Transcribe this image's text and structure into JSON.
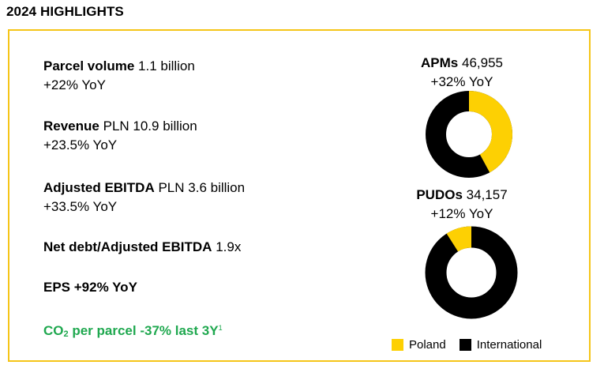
{
  "title": "2024 HIGHLIGHTS",
  "metrics": {
    "parcel": {
      "label": "Parcel volume",
      "value": "1.1 billion",
      "change": "+22% YoY"
    },
    "revenue": {
      "label": "Revenue",
      "value": "PLN 10.9 billion",
      "change": "+23.5% YoY"
    },
    "ebitda": {
      "label": "Adjusted EBITDA",
      "value": "PLN 3.6 billion",
      "change": "+33.5% YoY"
    },
    "netdebt": {
      "label": "Net debt/Adjusted EBITDA",
      "value": "1.9x"
    },
    "eps": {
      "label": "EPS +92% YoY"
    },
    "co2": {
      "pre": "CO",
      "subscript": "2",
      "post": " per parcel -37% last 3Y",
      "footnote": "1"
    }
  },
  "apms": {
    "label": "APMs",
    "value": "46,955",
    "change": "+32% YoY",
    "poland_share": 0.42,
    "international_share": 0.58
  },
  "pudos": {
    "label": "PUDOs",
    "value": "34,157",
    "change": "+12% YoY",
    "poland_share": 0.09,
    "international_share": 0.91
  },
  "legend": {
    "poland": "Poland",
    "international": "International"
  },
  "colors": {
    "poland": "#fdd003",
    "international": "#000000",
    "accent": "#f5c518",
    "co2": "#1fa84f"
  }
}
